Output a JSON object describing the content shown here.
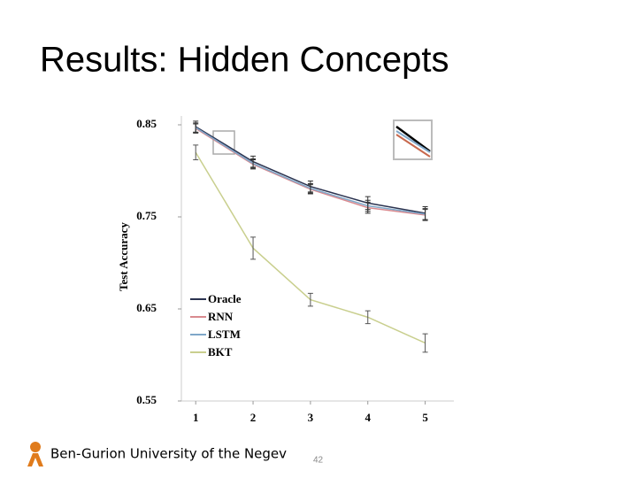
{
  "slide": {
    "title": "Results: Hidden Concepts",
    "footer": "Ben-Gurion University of the Negev",
    "page_number": "42"
  },
  "chart_data": {
    "type": "line",
    "y_label": "Test Accuracy",
    "x": [
      1,
      2,
      3,
      4,
      5
    ],
    "xlim": [
      0.75,
      5.5
    ],
    "xticks": [
      1,
      2,
      3,
      4,
      5
    ],
    "ylim": [
      0.55,
      0.85
    ],
    "yticks": [
      0.55,
      0.65,
      0.75,
      0.85
    ],
    "legend": "lower left",
    "series": [
      {
        "name": "Oracle",
        "color": "#2b3350",
        "values": [
          0.848,
          0.81,
          0.783,
          0.765,
          0.754
        ],
        "errors": [
          0.006,
          0.006,
          0.006,
          0.007,
          0.007
        ]
      },
      {
        "name": "RNN",
        "color": "#d98a8f",
        "values": [
          0.846,
          0.807,
          0.78,
          0.76,
          0.752
        ],
        "errors": [
          0.005,
          0.005,
          0.005,
          0.006,
          0.006
        ]
      },
      {
        "name": "LSTM",
        "color": "#7fa7c9",
        "values": [
          0.847,
          0.808,
          0.781,
          0.762,
          0.753
        ],
        "errors": [
          0.005,
          0.005,
          0.005,
          0.006,
          0.006
        ]
      },
      {
        "name": "BKT",
        "color": "#c9cf8e",
        "values": [
          0.82,
          0.716,
          0.66,
          0.641,
          0.613
        ],
        "errors": [
          0.008,
          0.012,
          0.007,
          0.007,
          0.01
        ]
      }
    ]
  }
}
